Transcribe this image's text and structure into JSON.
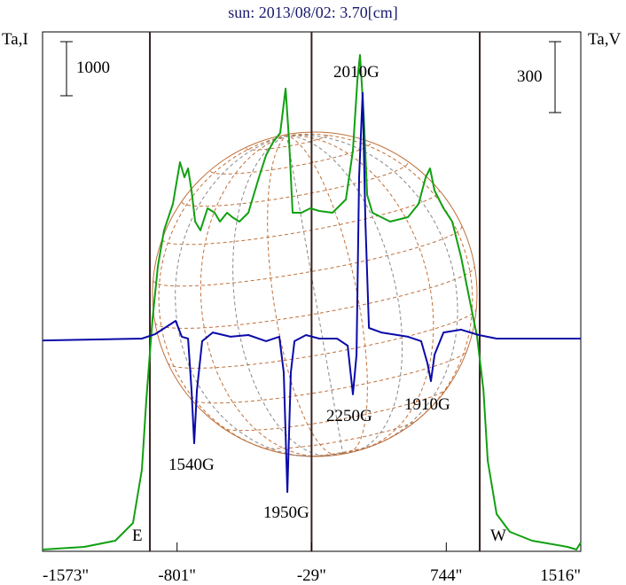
{
  "chart_data": {
    "type": "line",
    "title": "sun: 2013/08/02: 3.70[cm]",
    "ylabel_left": "Ta,I",
    "ylabel_right": "Ta,V",
    "scale_bar_left": "1000",
    "scale_bar_right": "300",
    "xlim": [
      -1573,
      1516
    ],
    "x_tick_labels": [
      "-1573\"",
      "-801\"",
      "-29\"",
      "744\"",
      "1516\""
    ],
    "x_ticks": [
      -1573,
      -801,
      -29,
      744,
      1516
    ],
    "limb_markers": [
      {
        "label": "E",
        "x": -957
      },
      {
        "label": "W",
        "x": 936
      }
    ],
    "center_line_x": -29,
    "annotations": [
      {
        "text": "2010G",
        "x": 250,
        "series": "V"
      },
      {
        "text": "2250G",
        "x": 208,
        "series": "V"
      },
      {
        "text": "1910G",
        "x": 656,
        "series": "V"
      },
      {
        "text": "1540G",
        "x": -703,
        "series": "V"
      },
      {
        "text": "1950G",
        "x": -168,
        "series": "V"
      }
    ],
    "series": [
      {
        "name": "I",
        "color": "#11a011",
        "x": [
          -1573,
          -1334,
          -1155,
          -1054,
          -1003,
          -977,
          -942,
          -911,
          -876,
          -825,
          -784,
          -759,
          -738,
          -718,
          -697,
          -667,
          -626,
          -585,
          -555,
          -514,
          -484,
          -443,
          -392,
          -331,
          -290,
          -249,
          -209,
          -178,
          -158,
          -138,
          -87,
          -36,
          15,
          91,
          168,
          208,
          234,
          249,
          270,
          290,
          320,
          422,
          524,
          585,
          626,
          651,
          677,
          728,
          778,
          829,
          880,
          921,
          957,
          982,
          1033,
          1109,
          1236,
          1440,
          1491,
          1516
        ],
        "y": [
          33,
          82,
          197,
          524,
          1508,
          2819,
          4295,
          5278,
          5934,
          6425,
          7195,
          6917,
          7081,
          6671,
          6097,
          5934,
          6343,
          6261,
          6097,
          6261,
          6179,
          6097,
          6261,
          6917,
          7327,
          7572,
          7736,
          8556,
          7572,
          6261,
          6261,
          6343,
          6294,
          6261,
          6507,
          7408,
          8720,
          9178,
          8064,
          6589,
          6261,
          6097,
          6179,
          6425,
          6917,
          7081,
          6671,
          6343,
          6097,
          5442,
          4622,
          3966,
          2983,
          1672,
          688,
          361,
          197,
          82,
          33,
          164
        ]
      },
      {
        "name": "V",
        "color": "#0a0aa8",
        "x": [
          -1573,
          -1003,
          -926,
          -809,
          -774,
          -738,
          -718,
          -703,
          -687,
          -657,
          -596,
          -494,
          -392,
          -290,
          -214,
          -189,
          -168,
          -148,
          -127,
          -61,
          15,
          117,
          178,
          208,
          229,
          244,
          264,
          280,
          300,
          371,
          524,
          600,
          636,
          656,
          677,
          728,
          829,
          931,
          1033,
          1516
        ],
        "y": [
          -8,
          0,
          19,
          75,
          8,
          0,
          -218,
          -443,
          -218,
          -11,
          26,
          8,
          15,
          -11,
          8,
          -143,
          -649,
          -143,
          -11,
          15,
          0,
          0,
          -30,
          -236,
          -68,
          683,
          1039,
          495,
          45,
          26,
          8,
          -11,
          -105,
          -180,
          -68,
          26,
          38,
          15,
          0,
          0
        ]
      }
    ]
  }
}
